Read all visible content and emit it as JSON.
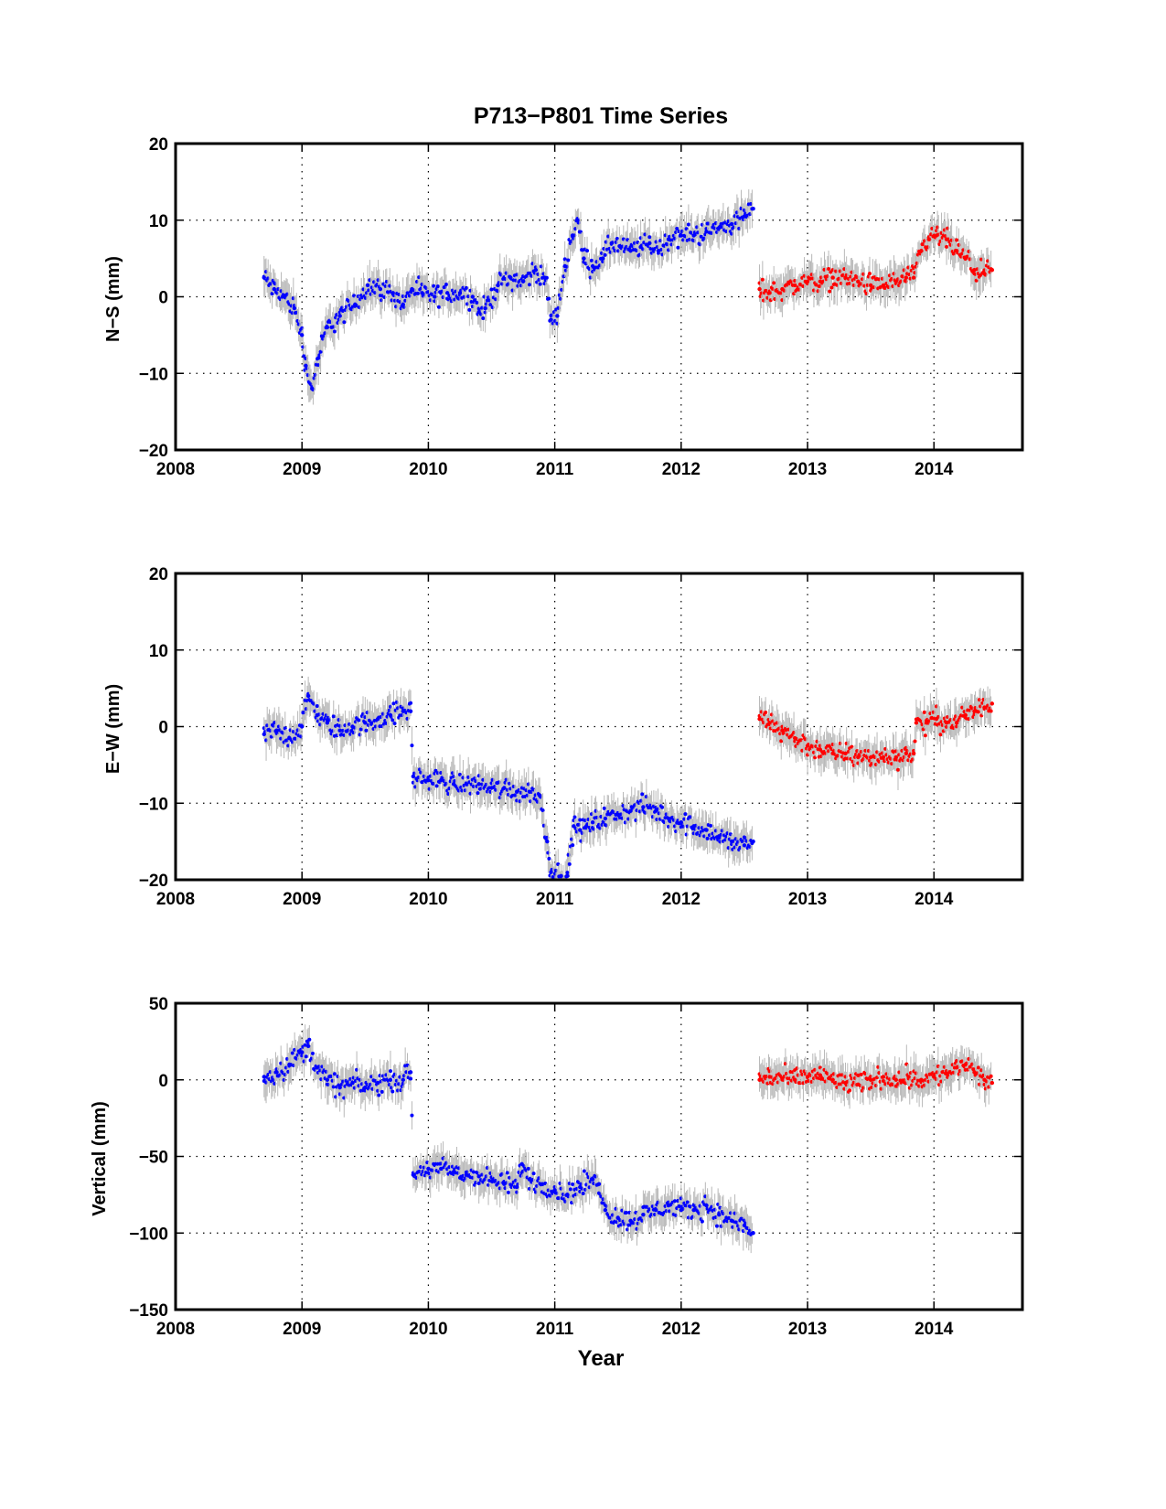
{
  "chart_data": [
    {
      "type": "scatter",
      "panel": "N-S",
      "title": "P713−P801 Time Series",
      "ylabel": "N−S (mm)",
      "xlabel": "",
      "xlim": [
        2008,
        2014.7
      ],
      "ylim": [
        -20,
        20
      ],
      "xticks": [
        "2008",
        "2009",
        "2010",
        "2011",
        "2012",
        "2013",
        "2014"
      ],
      "yticks": [
        "−20",
        "−10",
        "0",
        "10",
        "20"
      ],
      "ytick_values": [
        -20,
        -10,
        0,
        10,
        20
      ],
      "grid": true,
      "colors": {
        "first_segment": "#0000ff",
        "second_segment": "#ff0000",
        "error_bars": "#b8b8b8"
      },
      "series": [
        {
          "color": "#0000ff",
          "x": [
            2008.7,
            2008.78,
            2008.86,
            2008.94,
            2009.0,
            2009.03,
            2009.08,
            2009.13,
            2009.2,
            2009.3,
            2009.42,
            2009.52,
            2009.62,
            2009.72,
            2009.8,
            2009.87,
            2009.95,
            2010.05,
            2010.15,
            2010.25,
            2010.35,
            2010.4,
            2010.45,
            2010.55,
            2010.65,
            2010.75,
            2010.85,
            2010.92,
            2010.97,
            2011.02,
            2011.08,
            2011.14,
            2011.18,
            2011.23,
            2011.3,
            2011.38,
            2011.45,
            2011.52,
            2011.6,
            2011.68,
            2011.75,
            2011.82,
            2011.9,
            2012.0,
            2012.1,
            2012.2,
            2012.3,
            2012.4,
            2012.5,
            2012.57
          ],
          "y": [
            2.5,
            1.0,
            0.0,
            -1.5,
            -5.0,
            -9.0,
            -12.0,
            -8.0,
            -4.0,
            -2.5,
            -1.0,
            1.5,
            1.0,
            0.5,
            -1.0,
            1.0,
            0.5,
            0.0,
            0.5,
            0.5,
            0.0,
            -2.0,
            -1.5,
            1.5,
            2.5,
            2.0,
            3.5,
            2.5,
            -3.0,
            -2.5,
            4.0,
            8.0,
            10.0,
            5.0,
            4.0,
            5.0,
            7.0,
            6.5,
            6.0,
            6.5,
            7.0,
            6.0,
            7.5,
            8.0,
            8.0,
            8.5,
            9.0,
            9.5,
            10.5,
            11.5
          ]
        },
        {
          "color": "#ff0000",
          "x": [
            2012.62,
            2012.7,
            2012.8,
            2012.9,
            2013.0,
            2013.1,
            2013.2,
            2013.3,
            2013.4,
            2013.5,
            2013.6,
            2013.7,
            2013.78,
            2013.84,
            2013.9,
            2013.96,
            2014.02,
            2014.1,
            2014.18,
            2014.25,
            2014.32,
            2014.4,
            2014.46
          ],
          "y": [
            1.0,
            0.5,
            1.0,
            1.5,
            2.0,
            2.0,
            2.5,
            2.5,
            2.0,
            1.5,
            1.5,
            2.0,
            2.5,
            2.5,
            6.0,
            7.5,
            8.0,
            7.5,
            6.0,
            5.0,
            3.5,
            3.0,
            3.5
          ]
        }
      ]
    },
    {
      "type": "scatter",
      "panel": "E-W",
      "title": "",
      "ylabel": "E−W (mm)",
      "xlabel": "",
      "xlim": [
        2008,
        2014.7
      ],
      "ylim": [
        -20,
        20
      ],
      "xticks": [
        "2008",
        "2009",
        "2010",
        "2011",
        "2012",
        "2013",
        "2014"
      ],
      "yticks": [
        "−20",
        "−10",
        "0",
        "10",
        "20"
      ],
      "ytick_values": [
        -20,
        -10,
        0,
        10,
        20
      ],
      "grid": true,
      "series": [
        {
          "color": "#0000ff",
          "x": [
            2008.7,
            2008.8,
            2008.9,
            2009.0,
            2009.05,
            2009.12,
            2009.2,
            2009.3,
            2009.4,
            2009.5,
            2009.6,
            2009.7,
            2009.8,
            2009.86,
            2009.88,
            2010.0,
            2010.1,
            2010.2,
            2010.3,
            2010.4,
            2010.5,
            2010.6,
            2010.7,
            2010.8,
            2010.88,
            2010.94,
            2010.97,
            2011.05,
            2011.1,
            2011.15,
            2011.2,
            2011.25,
            2011.3,
            2011.4,
            2011.5,
            2011.6,
            2011.7,
            2011.8,
            2011.9,
            2012.0,
            2012.1,
            2012.2,
            2012.3,
            2012.4,
            2012.5,
            2012.57
          ],
          "y": [
            -1.0,
            -0.5,
            -1.5,
            0.0,
            4.0,
            1.5,
            0.5,
            -0.5,
            0.0,
            0.5,
            1.0,
            1.5,
            2.0,
            2.0,
            -6.5,
            -7.0,
            -7.0,
            -7.5,
            -7.5,
            -7.5,
            -8.0,
            -8.0,
            -8.5,
            -8.5,
            -9.0,
            -15.0,
            -19.0,
            -19.5,
            -19.5,
            -13.0,
            -13.5,
            -13.0,
            -12.5,
            -12.0,
            -11.5,
            -11.0,
            -10.5,
            -11.0,
            -12.0,
            -12.5,
            -13.0,
            -13.5,
            -14.5,
            -15.0,
            -15.5,
            -15.0
          ]
        },
        {
          "color": "#ff0000",
          "x": [
            2012.62,
            2012.7,
            2012.8,
            2012.9,
            2013.0,
            2013.1,
            2013.2,
            2013.3,
            2013.4,
            2013.5,
            2013.6,
            2013.7,
            2013.78,
            2013.84,
            2013.86,
            2013.94,
            2014.02,
            2014.1,
            2014.18,
            2014.25,
            2014.32,
            2014.4,
            2014.46
          ],
          "y": [
            1.0,
            0.5,
            -0.5,
            -1.5,
            -2.5,
            -3.0,
            -3.5,
            -3.5,
            -4.0,
            -4.0,
            -4.0,
            -4.0,
            -3.5,
            -3.5,
            0.5,
            0.5,
            1.0,
            0.5,
            0.5,
            1.5,
            2.0,
            2.5,
            3.0
          ]
        }
      ]
    },
    {
      "type": "scatter",
      "panel": "Vertical",
      "title": "",
      "ylabel": "Vertical (mm)",
      "xlabel": "Year",
      "xlim": [
        2008,
        2014.7
      ],
      "ylim": [
        -150,
        50
      ],
      "xticks": [
        "2008",
        "2009",
        "2010",
        "2011",
        "2012",
        "2013",
        "2014"
      ],
      "yticks": [
        "−150",
        "−100",
        "−50",
        "0",
        "50"
      ],
      "ytick_values": [
        -150,
        -100,
        -50,
        0,
        50
      ],
      "grid": true,
      "series": [
        {
          "color": "#0000ff",
          "x": [
            2008.7,
            2008.8,
            2008.9,
            2009.0,
            2009.05,
            2009.12,
            2009.2,
            2009.3,
            2009.4,
            2009.5,
            2009.6,
            2009.7,
            2009.8,
            2009.86,
            2009.88,
            2010.0,
            2010.1,
            2010.2,
            2010.3,
            2010.4,
            2010.5,
            2010.6,
            2010.7,
            2010.74,
            2010.8,
            2010.9,
            2011.0,
            2011.1,
            2011.2,
            2011.3,
            2011.35,
            2011.4,
            2011.5,
            2011.6,
            2011.7,
            2011.8,
            2011.9,
            2012.0,
            2012.1,
            2012.2,
            2012.3,
            2012.4,
            2012.5,
            2012.57
          ],
          "y": [
            2.0,
            5.0,
            10.0,
            18.0,
            22.0,
            8.0,
            0.0,
            -5.0,
            -2.0,
            -5.0,
            -2.0,
            0.0,
            0.0,
            5.0,
            -62.0,
            -58.0,
            -58.0,
            -60.0,
            -62.0,
            -63.0,
            -66.0,
            -68.0,
            -70.0,
            -55.0,
            -65.0,
            -68.0,
            -72.0,
            -75.0,
            -70.0,
            -65.0,
            -68.0,
            -85.0,
            -90.0,
            -92.0,
            -88.0,
            -85.0,
            -82.0,
            -85.0,
            -85.0,
            -82.0,
            -88.0,
            -92.0,
            -95.0,
            -100.0
          ]
        },
        {
          "color": "#ff0000",
          "x": [
            2012.62,
            2012.7,
            2012.8,
            2012.9,
            2013.0,
            2013.1,
            2013.2,
            2013.3,
            2013.4,
            2013.5,
            2013.6,
            2013.7,
            2013.8,
            2013.9,
            2014.0,
            2014.1,
            2014.18,
            2014.25,
            2014.32,
            2014.4,
            2014.46
          ],
          "y": [
            0.0,
            2.0,
            1.0,
            0.0,
            2.0,
            3.0,
            0.0,
            -2.0,
            -3.0,
            0.0,
            2.0,
            0.0,
            2.0,
            0.0,
            2.0,
            4.0,
            8.0,
            10.0,
            5.0,
            0.0,
            -2.0
          ]
        }
      ]
    }
  ]
}
